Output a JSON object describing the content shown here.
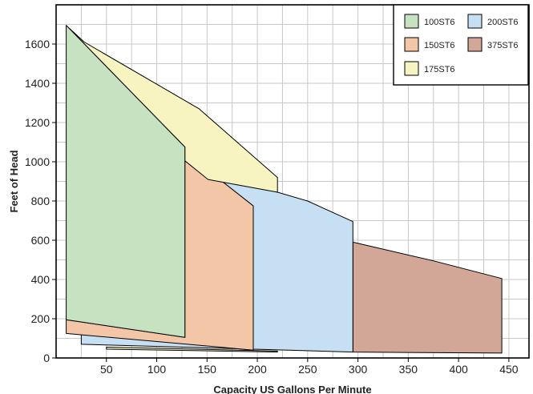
{
  "chart_data": {
    "type": "area",
    "title": "",
    "xlabel": "Capacity US Gallons Per Minute",
    "ylabel": "Feet of Head",
    "xlim": [
      0,
      470
    ],
    "ylim": [
      0,
      1800
    ],
    "xticks": [
      50,
      100,
      150,
      200,
      250,
      300,
      350,
      400,
      450
    ],
    "yticks": [
      0,
      200,
      400,
      600,
      800,
      1000,
      1200,
      1400,
      1600
    ],
    "grid": true,
    "legend_position": "top-right",
    "legend_columns": 2,
    "draw_order": [
      "375ST6",
      "200ST6",
      "150ST6",
      "175ST6",
      "100ST6"
    ],
    "series": [
      {
        "name": "100ST6",
        "color": "#c7e2c0",
        "polygon": [
          [
            10,
            1695
          ],
          [
            128,
            1075
          ],
          [
            128,
            105
          ],
          [
            10,
            195
          ]
        ]
      },
      {
        "name": "150ST6",
        "color": "#f4c6a8",
        "polygon": [
          [
            128,
            1005
          ],
          [
            165,
            900
          ],
          [
            196,
            775
          ],
          [
            196,
            40
          ],
          [
            10,
            125
          ],
          [
            10,
            195
          ],
          [
            128,
            105
          ]
        ]
      },
      {
        "name": "175ST6",
        "color": "#f8f4c2",
        "polygon": [
          [
            28,
            1610
          ],
          [
            142,
            1270
          ],
          [
            220,
            920
          ],
          [
            220,
            845
          ],
          [
            151,
            910
          ],
          [
            128,
            1005
          ],
          [
            128,
            1075
          ],
          [
            10,
            1695
          ]
        ]
      },
      {
        "name": "200ST6",
        "color": "#c6dff2",
        "polygon": [
          [
            151,
            930
          ],
          [
            220,
            845
          ],
          [
            250,
            800
          ],
          [
            295,
            695
          ],
          [
            295,
            30
          ],
          [
            25,
            70
          ],
          [
            25,
            125
          ],
          [
            196,
            40
          ],
          [
            196,
            775
          ],
          [
            165,
            900
          ]
        ]
      },
      {
        "name": "375ST6",
        "color": "#d2a797",
        "polygon": [
          [
            295,
            590
          ],
          [
            375,
            495
          ],
          [
            443,
            405
          ],
          [
            443,
            25
          ],
          [
            295,
            30
          ]
        ]
      },
      {
        "name": "175ST6-lower",
        "color": "#f8f4c2",
        "polygon": [
          [
            50,
            55
          ],
          [
            220,
            35
          ],
          [
            220,
            30
          ],
          [
            50,
            45
          ]
        ]
      }
    ]
  }
}
